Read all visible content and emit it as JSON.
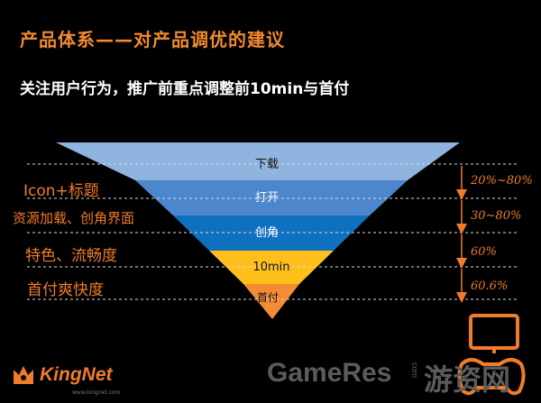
{
  "header": {
    "title": "产品体系——对产品调优的建议",
    "subtitle": "关注用户行为，推广前重点调整前10min与首付"
  },
  "funnel": {
    "stages": [
      {
        "label": "下载",
        "color": "#8fb4df"
      },
      {
        "label": "打开",
        "color": "#4c86cc"
      },
      {
        "label": "创角",
        "color": "#0f70c0"
      },
      {
        "label": "10min",
        "color": "#ffbf1a"
      },
      {
        "label": "首付",
        "color": "#f48c36"
      }
    ]
  },
  "left_labels": [
    "Icon+标题",
    "资源加载、创角界面",
    "特色、流畅度",
    "首付爽快度"
  ],
  "right_labels": [
    "20%~80%",
    "30~80%",
    "60%",
    "60.6%"
  ],
  "branding": {
    "logo_text": "KingNet",
    "logo_sub": "www.kingnet.com",
    "watermark": "GameRes",
    "watermark_com": "com",
    "watermark_cn": "游资网"
  }
}
